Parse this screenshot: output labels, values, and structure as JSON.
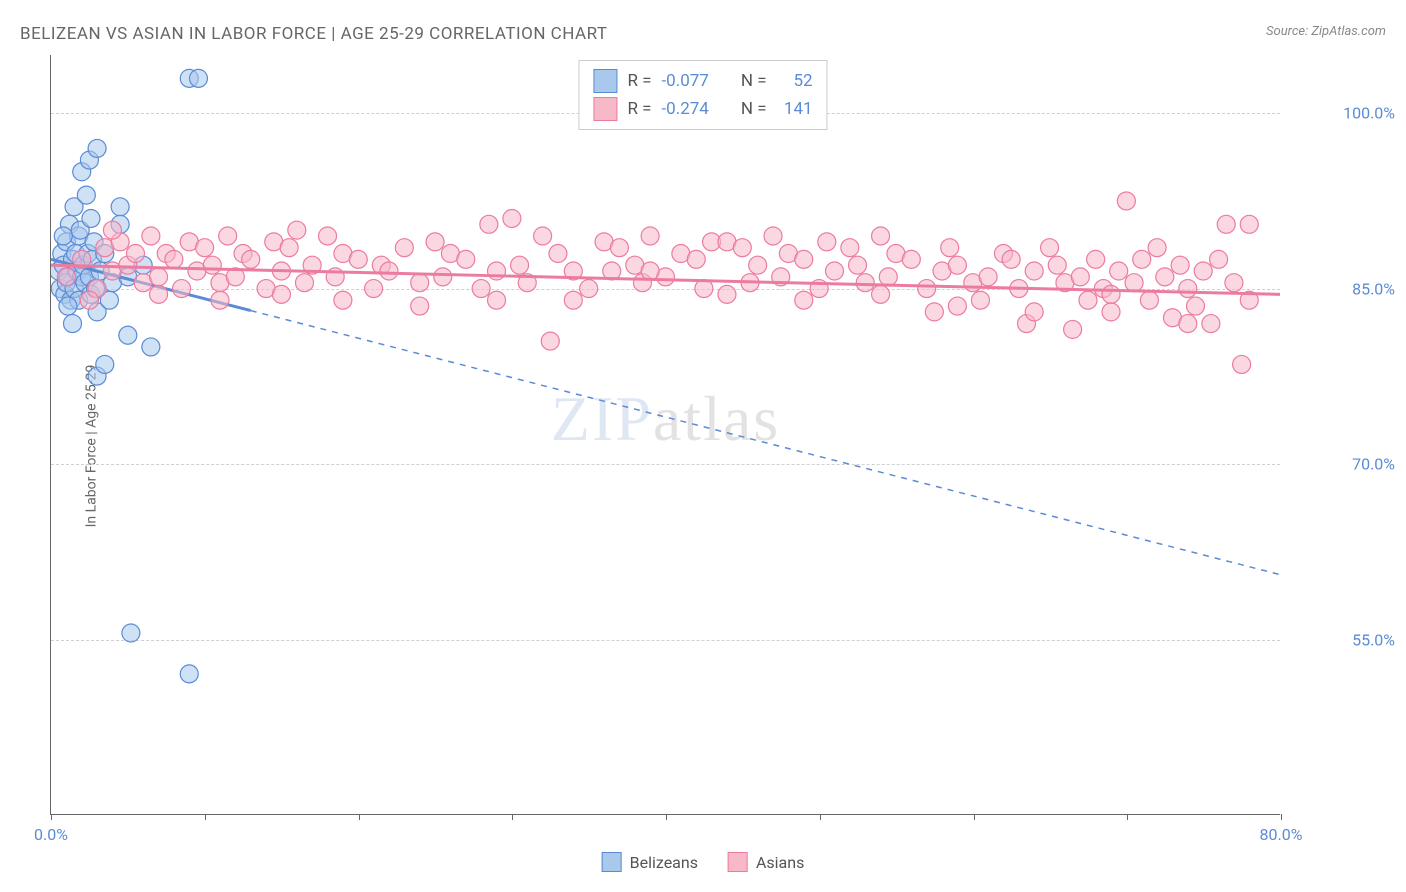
{
  "title": "BELIZEAN VS ASIAN IN LABOR FORCE | AGE 25-29 CORRELATION CHART",
  "source_label": "Source: ZipAtlas.com",
  "watermark": "ZIPatlas",
  "y_axis_label": "In Labor Force | Age 25-29",
  "chart": {
    "type": "scatter",
    "background_color": "#ffffff",
    "grid_color": "#d0d0d0",
    "axis_color": "#666666",
    "xlim": [
      0,
      80
    ],
    "ylim": [
      40,
      105
    ],
    "x_ticks": [
      0,
      10,
      20,
      30,
      40,
      50,
      60,
      70,
      80
    ],
    "x_tick_labels": {
      "0": "0.0%",
      "80": "80.0%"
    },
    "y_ticks": [
      55,
      70,
      85,
      100
    ],
    "y_tick_labels": {
      "55": "55.0%",
      "70": "70.0%",
      "85": "85.0%",
      "100": "100.0%"
    },
    "marker_radius": 9,
    "marker_opacity": 0.55,
    "marker_stroke_width": 1.2,
    "trend_line_width": 3,
    "trend_dash_width": 1.5,
    "series": [
      {
        "name": "Belizeans",
        "color_fill": "#a8c8ec",
        "color_stroke": "#5b8bd4",
        "r_value": "-0.077",
        "n_value": "52",
        "trend": {
          "x1": 0,
          "y1": 87.5,
          "x2": 80,
          "y2": 60.5,
          "solid_until_x": 13
        },
        "points": [
          [
            0.5,
            86.5
          ],
          [
            0.6,
            85.0
          ],
          [
            0.7,
            88.0
          ],
          [
            0.8,
            87.0
          ],
          [
            0.9,
            84.5
          ],
          [
            1.0,
            85.5
          ],
          [
            1.0,
            89.0
          ],
          [
            1.1,
            86.0
          ],
          [
            1.2,
            90.5
          ],
          [
            1.3,
            84.0
          ],
          [
            1.4,
            87.5
          ],
          [
            1.5,
            85.0
          ],
          [
            1.5,
            92.0
          ],
          [
            1.6,
            88.0
          ],
          [
            1.7,
            86.5
          ],
          [
            1.8,
            84.0
          ],
          [
            1.8,
            89.5
          ],
          [
            1.9,
            90.0
          ],
          [
            2.0,
            86.0
          ],
          [
            2.0,
            95.0
          ],
          [
            2.1,
            87.0
          ],
          [
            2.2,
            85.5
          ],
          [
            2.3,
            93.0
          ],
          [
            2.4,
            88.0
          ],
          [
            2.5,
            86.0
          ],
          [
            2.5,
            96.0
          ],
          [
            2.6,
            84.5
          ],
          [
            2.7,
            87.5
          ],
          [
            2.8,
            89.0
          ],
          [
            2.9,
            85.0
          ],
          [
            3.0,
            97.0
          ],
          [
            3.0,
            83.0
          ],
          [
            3.0,
            77.5
          ],
          [
            3.2,
            86.5
          ],
          [
            3.5,
            88.0
          ],
          [
            3.5,
            78.5
          ],
          [
            3.8,
            84.0
          ],
          [
            4.0,
            85.5
          ],
          [
            4.5,
            92.0
          ],
          [
            5.0,
            86.0
          ],
          [
            5.0,
            81.0
          ],
          [
            5.2,
            55.5
          ],
          [
            6.0,
            87.0
          ],
          [
            6.5,
            80.0
          ],
          [
            9.0,
            103.0
          ],
          [
            9.6,
            103.0
          ],
          [
            9.0,
            52.0
          ],
          [
            4.5,
            90.5
          ],
          [
            1.4,
            82.0
          ],
          [
            2.6,
            91.0
          ],
          [
            1.1,
            83.5
          ],
          [
            0.8,
            89.5
          ]
        ]
      },
      {
        "name": "Asians",
        "color_fill": "#f7b8c8",
        "color_stroke": "#ec7ba0",
        "r_value": "-0.274",
        "n_value": "141",
        "trend": {
          "x1": 0,
          "y1": 87.0,
          "x2": 80,
          "y2": 84.5,
          "solid_until_x": 80
        },
        "points": [
          [
            1,
            86.0
          ],
          [
            2,
            87.5
          ],
          [
            3,
            85.0
          ],
          [
            3.5,
            88.5
          ],
          [
            4,
            86.5
          ],
          [
            4.5,
            89.0
          ],
          [
            5,
            87.0
          ],
          [
            5.5,
            88.0
          ],
          [
            6,
            85.5
          ],
          [
            6.5,
            89.5
          ],
          [
            7,
            86.0
          ],
          [
            7.5,
            88.0
          ],
          [
            8,
            87.5
          ],
          [
            8.5,
            85.0
          ],
          [
            9,
            89.0
          ],
          [
            9.5,
            86.5
          ],
          [
            10,
            88.5
          ],
          [
            10.5,
            87.0
          ],
          [
            11,
            85.5
          ],
          [
            11.5,
            89.5
          ],
          [
            12,
            86.0
          ],
          [
            12.5,
            88.0
          ],
          [
            13,
            87.5
          ],
          [
            14,
            85.0
          ],
          [
            14.5,
            89.0
          ],
          [
            15,
            86.5
          ],
          [
            15.5,
            88.5
          ],
          [
            16,
            90.0
          ],
          [
            16.5,
            85.5
          ],
          [
            17,
            87.0
          ],
          [
            18,
            89.5
          ],
          [
            18.5,
            86.0
          ],
          [
            19,
            88.0
          ],
          [
            20,
            87.5
          ],
          [
            21,
            85.0
          ],
          [
            21.5,
            87.0
          ],
          [
            22,
            86.5
          ],
          [
            23,
            88.5
          ],
          [
            24,
            85.5
          ],
          [
            25,
            89.0
          ],
          [
            25.5,
            86.0
          ],
          [
            26,
            88.0
          ],
          [
            27,
            87.5
          ],
          [
            28,
            85.0
          ],
          [
            28.5,
            90.5
          ],
          [
            29,
            86.5
          ],
          [
            30,
            91.0
          ],
          [
            30.5,
            87.0
          ],
          [
            31,
            85.5
          ],
          [
            32,
            89.5
          ],
          [
            32.5,
            80.5
          ],
          [
            33,
            88.0
          ],
          [
            34,
            86.5
          ],
          [
            35,
            85.0
          ],
          [
            36,
            89.0
          ],
          [
            36.5,
            86.5
          ],
          [
            37,
            88.5
          ],
          [
            38,
            87.0
          ],
          [
            38.5,
            85.5
          ],
          [
            39,
            89.5
          ],
          [
            40,
            86.0
          ],
          [
            41,
            88.0
          ],
          [
            42,
            87.5
          ],
          [
            42.5,
            85.0
          ],
          [
            43,
            89.0
          ],
          [
            44,
            89.0
          ],
          [
            45,
            88.5
          ],
          [
            45.5,
            85.5
          ],
          [
            46,
            87.0
          ],
          [
            47,
            89.5
          ],
          [
            47.5,
            86.0
          ],
          [
            48,
            88.0
          ],
          [
            49,
            87.5
          ],
          [
            50,
            85.0
          ],
          [
            50.5,
            89.0
          ],
          [
            51,
            86.5
          ],
          [
            52,
            88.5
          ],
          [
            52.5,
            87.0
          ],
          [
            53,
            85.5
          ],
          [
            54,
            89.5
          ],
          [
            54.5,
            86.0
          ],
          [
            55,
            88.0
          ],
          [
            56,
            87.5
          ],
          [
            57,
            85.0
          ],
          [
            57.5,
            83.0
          ],
          [
            58,
            86.5
          ],
          [
            58.5,
            88.5
          ],
          [
            59,
            87.0
          ],
          [
            60,
            85.5
          ],
          [
            60.5,
            84.0
          ],
          [
            61,
            86.0
          ],
          [
            62,
            88.0
          ],
          [
            62.5,
            87.5
          ],
          [
            63,
            85.0
          ],
          [
            63.5,
            82.0
          ],
          [
            64,
            86.5
          ],
          [
            65,
            88.5
          ],
          [
            65.5,
            87.0
          ],
          [
            66,
            85.5
          ],
          [
            66.5,
            81.5
          ],
          [
            67,
            86.0
          ],
          [
            67.5,
            84.0
          ],
          [
            68,
            87.5
          ],
          [
            68.5,
            85.0
          ],
          [
            69,
            83.0
          ],
          [
            69.5,
            86.5
          ],
          [
            70,
            92.5
          ],
          [
            70.5,
            85.5
          ],
          [
            71,
            87.5
          ],
          [
            71.5,
            84.0
          ],
          [
            72,
            88.5
          ],
          [
            72.5,
            86.0
          ],
          [
            73,
            82.5
          ],
          [
            73.5,
            87.0
          ],
          [
            74,
            85.0
          ],
          [
            74.5,
            83.5
          ],
          [
            75,
            86.5
          ],
          [
            75.5,
            82.0
          ],
          [
            76,
            87.5
          ],
          [
            76.5,
            90.5
          ],
          [
            77,
            85.5
          ],
          [
            77.5,
            78.5
          ],
          [
            78,
            84.0
          ],
          [
            2.5,
            84.0
          ],
          [
            4,
            90.0
          ],
          [
            7,
            84.5
          ],
          [
            11,
            84.0
          ],
          [
            15,
            84.5
          ],
          [
            19,
            84.0
          ],
          [
            24,
            83.5
          ],
          [
            29,
            84.0
          ],
          [
            34,
            84.0
          ],
          [
            39,
            86.5
          ],
          [
            44,
            84.5
          ],
          [
            49,
            84.0
          ],
          [
            54,
            84.5
          ],
          [
            59,
            83.5
          ],
          [
            64,
            83.0
          ],
          [
            69,
            84.5
          ],
          [
            74,
            82.0
          ],
          [
            78,
            90.5
          ]
        ]
      }
    ]
  },
  "legend_bottom": [
    {
      "label": "Belizeans",
      "fill": "#a8c8ec",
      "stroke": "#5b8bd4"
    },
    {
      "label": "Asians",
      "fill": "#f7b8c8",
      "stroke": "#ec7ba0"
    }
  ]
}
